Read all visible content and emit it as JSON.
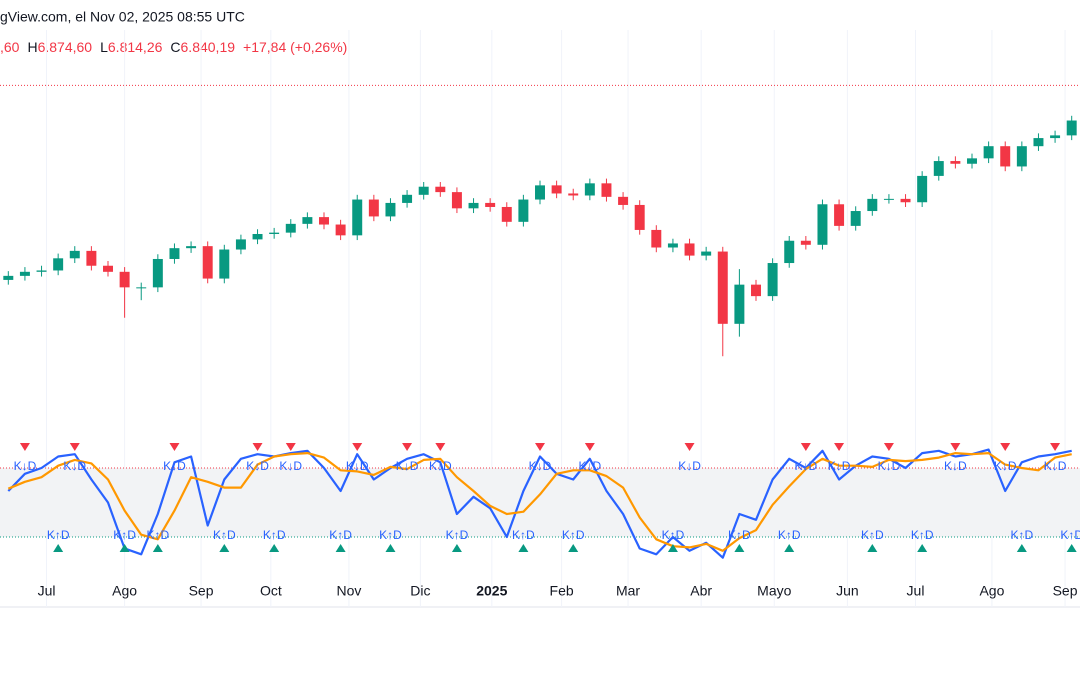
{
  "chart_data": {
    "type": "candlestick",
    "header": "gView.com, el Nov 02, 2025 08:55 UTC",
    "open_fragment": ",60",
    "ohlc": [
      {
        "label": "H",
        "value": "6.874,60"
      },
      {
        "label": "L",
        "value": "6.814,26"
      },
      {
        "label": "C",
        "value": "6.840,19"
      }
    ],
    "change": "+17,84 (+0,26%)",
    "last_price": 6840.19,
    "up_color": "#089981",
    "down_color": "#f23645",
    "xlim": [
      -0.5,
      64.5
    ],
    "xticks": [
      {
        "value": 2.3,
        "label": "Jul"
      },
      {
        "value": 7.0,
        "label": "Ago"
      },
      {
        "value": 11.6,
        "label": "Sep"
      },
      {
        "value": 15.8,
        "label": "Oct"
      },
      {
        "value": 20.5,
        "label": "Nov"
      },
      {
        "value": 24.8,
        "label": "Dic"
      },
      {
        "value": 29.1,
        "label": "2025",
        "bold": true
      },
      {
        "value": 33.3,
        "label": "Feb"
      },
      {
        "value": 37.3,
        "label": "Mar"
      },
      {
        "value": 41.7,
        "label": "Abr"
      },
      {
        "value": 46.1,
        "label": "Mayo"
      },
      {
        "value": 50.5,
        "label": "Jun"
      },
      {
        "value": 54.6,
        "label": "Jul"
      },
      {
        "value": 59.2,
        "label": "Ago"
      },
      {
        "value": 63.6,
        "label": "Sep"
      }
    ],
    "grid": true,
    "ylim": [
      4400,
      6880
    ],
    "open": [
      5400,
      5430,
      5460,
      5470,
      5560,
      5615,
      5505,
      5460,
      5345,
      5345,
      5555,
      5635,
      5650,
      5410,
      5625,
      5700,
      5740,
      5750,
      5815,
      5865,
      5810,
      5730,
      5995,
      5870,
      5970,
      6030,
      6090,
      6050,
      5930,
      5970,
      5940,
      5830,
      5995,
      6100,
      6040,
      6025,
      6115,
      6015,
      5955,
      5770,
      5640,
      5670,
      5580,
      5610,
      5075,
      5365,
      5280,
      5525,
      5690,
      5660,
      5960,
      5800,
      5910,
      6000,
      6000,
      5975,
      6170,
      6280,
      6260,
      6300,
      6390,
      6240,
      6390,
      6450,
      6470
    ],
    "high": [
      5465,
      5495,
      5505,
      5595,
      5650,
      5650,
      5540,
      5495,
      5380,
      5590,
      5670,
      5685,
      5685,
      5660,
      5735,
      5775,
      5785,
      5850,
      5900,
      5900,
      5845,
      6030,
      6030,
      6005,
      6065,
      6125,
      6125,
      6085,
      6005,
      6005,
      5975,
      6030,
      6135,
      6135,
      6075,
      6150,
      6150,
      6050,
      5990,
      5805,
      5705,
      5705,
      5645,
      5645,
      5480,
      5400,
      5560,
      5725,
      5725,
      5995,
      5995,
      5945,
      6035,
      6035,
      6035,
      6205,
      6315,
      6315,
      6335,
      6425,
      6425,
      6425,
      6485,
      6505,
      6615
    ],
    "low": [
      5365,
      5395,
      5425,
      5435,
      5525,
      5470,
      5425,
      5120,
      5250,
      5310,
      5520,
      5600,
      5375,
      5375,
      5590,
      5665,
      5705,
      5715,
      5780,
      5775,
      5695,
      5695,
      5835,
      5835,
      5935,
      5995,
      6015,
      5895,
      5895,
      5905,
      5795,
      5795,
      5960,
      6005,
      5990,
      5990,
      5980,
      5920,
      5735,
      5605,
      5605,
      5545,
      5545,
      4835,
      4980,
      5245,
      5245,
      5490,
      5625,
      5625,
      5765,
      5765,
      5875,
      5965,
      5940,
      5940,
      6135,
      6225,
      6225,
      6265,
      6205,
      6205,
      6355,
      6415,
      6435
    ],
    "close": [
      5430,
      5460,
      5470,
      5560,
      5615,
      5505,
      5460,
      5345,
      5345,
      5555,
      5635,
      5650,
      5410,
      5625,
      5700,
      5740,
      5750,
      5815,
      5865,
      5810,
      5730,
      5995,
      5870,
      5970,
      6030,
      6090,
      6050,
      5930,
      5970,
      5940,
      5830,
      5995,
      6100,
      6040,
      6025,
      6115,
      6015,
      5955,
      5770,
      5640,
      5670,
      5580,
      5610,
      5075,
      5365,
      5280,
      5525,
      5690,
      5660,
      5960,
      5800,
      5910,
      6000,
      6000,
      5975,
      6170,
      6280,
      6260,
      6300,
      6390,
      6240,
      6390,
      6450,
      6470,
      6580
    ],
    "stoch": {
      "ylim": [
        0,
        100
      ],
      "upper": 80,
      "lower": 20,
      "upper_color": "#f23645",
      "lower_color": "#089981",
      "series": [
        {
          "color": "#2962ff",
          "values": [
            60,
            75,
            80,
            90,
            92,
            70,
            50,
            10,
            5,
            40,
            85,
            90,
            30,
            70,
            88,
            92,
            90,
            93,
            95,
            80,
            60,
            92,
            70,
            80,
            88,
            92,
            85,
            40,
            55,
            45,
            20,
            60,
            90,
            75,
            70,
            88,
            60,
            40,
            10,
            5,
            20,
            8,
            15,
            2,
            40,
            35,
            70,
            88,
            80,
            95,
            70,
            82,
            90,
            88,
            80,
            93,
            95,
            90,
            92,
            96,
            60,
            85,
            90,
            92,
            95
          ]
        },
        {
          "color": "#ff9800",
          "values": [
            62,
            68,
            72,
            82,
            87,
            84,
            70,
            43,
            22,
            18,
            43,
            72,
            68,
            63,
            63,
            83,
            90,
            92,
            93,
            89,
            78,
            77,
            74,
            81,
            79,
            87,
            88,
            72,
            60,
            47,
            40,
            42,
            57,
            75,
            78,
            78,
            73,
            63,
            37,
            18,
            12,
            11,
            14,
            8,
            19,
            26,
            48,
            64,
            79,
            88,
            82,
            82,
            81,
            87,
            86,
            87,
            89,
            93,
            92,
            93,
            83,
            80,
            78,
            89,
            92
          ]
        }
      ],
      "cross_down": {
        "label": "K↓D",
        "at": [
          1,
          4,
          10,
          15,
          17,
          21,
          24,
          26,
          32,
          35,
          41,
          48,
          50,
          53,
          57,
          60,
          63
        ]
      },
      "cross_up": {
        "label": "K↑D",
        "at": [
          3,
          7,
          9,
          13,
          16,
          20,
          23,
          27,
          31,
          34,
          40,
          44,
          47,
          52,
          55,
          61,
          64
        ]
      }
    }
  }
}
